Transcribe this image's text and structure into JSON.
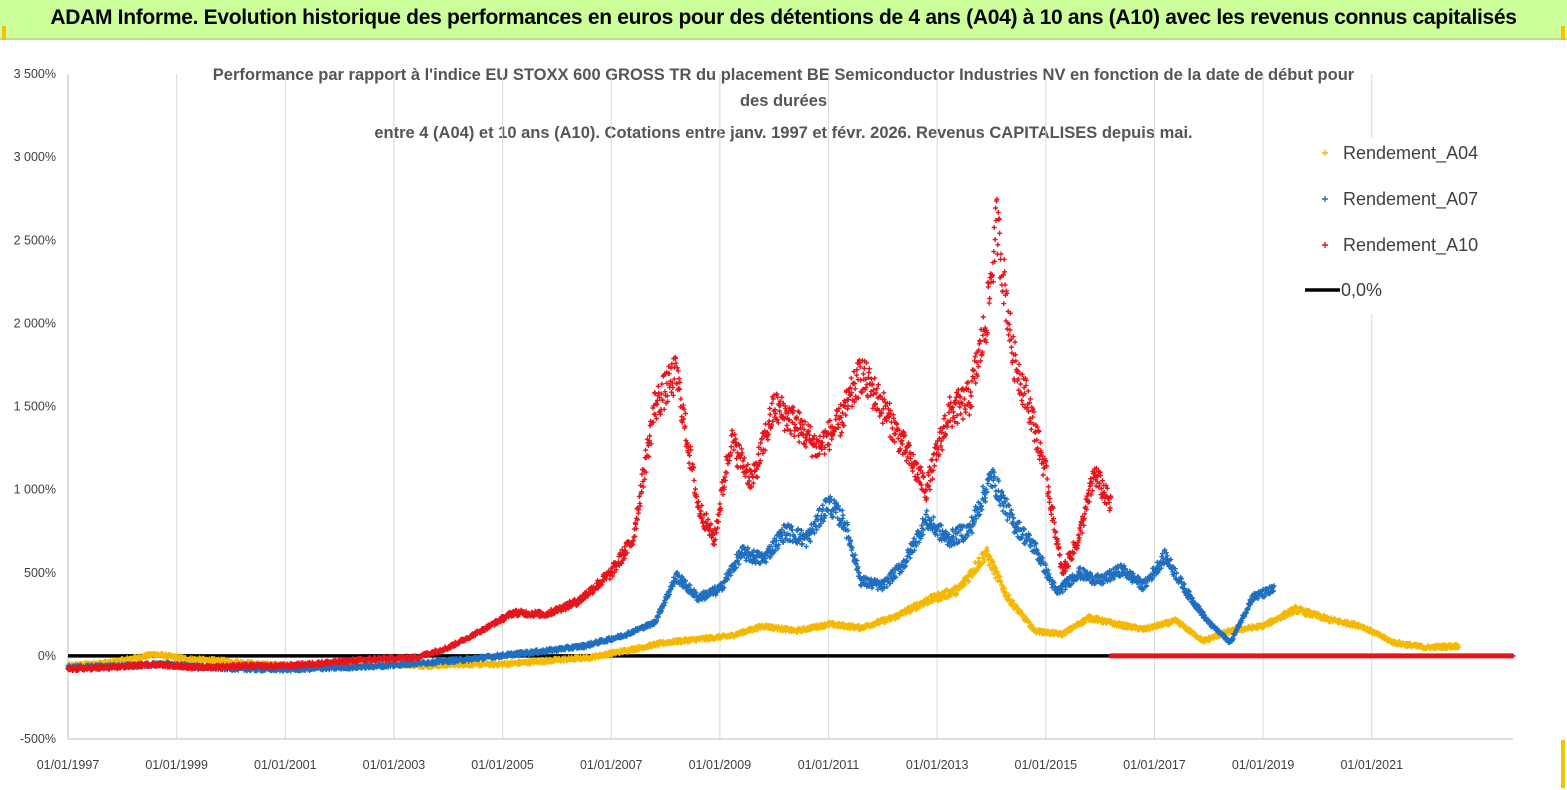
{
  "banner": {
    "title": "ADAM Informe. Evolution historique des performances en euros pour des détentions de 4 ans (A04) à 10 ans (A10) avec les revenus connus capitalisés"
  },
  "colors": {
    "a04": "#f5b800",
    "a07": "#1f6fc0",
    "a10": "#e8141c",
    "zero": "#000000",
    "banner_bg": "#ccff99"
  },
  "chart_data": {
    "type": "scatter",
    "title_lines": [
      "Performance par rapport à l'indice EU STOXX 600 GROSS TR  du placement BE Semiconductor Industries NV en fonction de la date de début pour",
      "des durées",
      "entre 4 (A04) et 10 ans (A10). Cotations entre janv. 1997 et févr. 2026. Revenus CAPITALISES depuis mai."
    ],
    "ylim": [
      -500,
      3500
    ],
    "y_ticks": [
      "-500%",
      "0%",
      "500%",
      "1 000%",
      "1 500%",
      "2 000%",
      "2 500%",
      "3 000%",
      "3 500%"
    ],
    "y_tick_values": [
      -500,
      0,
      500,
      1000,
      1500,
      2000,
      2500,
      3000,
      3500
    ],
    "x_range_years": [
      1997.0,
      2023.6
    ],
    "x_ticks": [
      "01/01/1997",
      "01/01/1999",
      "01/01/2001",
      "01/01/2003",
      "01/01/2005",
      "01/01/2007",
      "01/01/2009",
      "01/01/2011",
      "01/01/2013",
      "01/01/2015",
      "01/01/2017",
      "01/01/2019",
      "01/01/2021"
    ],
    "x_tick_years": [
      1997,
      1999,
      2001,
      2003,
      2005,
      2007,
      2009,
      2011,
      2013,
      2015,
      2017,
      2019,
      2021
    ],
    "legend": [
      "Rendement_A04",
      "Rendement_A07",
      "Rendement_A10",
      "0,0%"
    ],
    "series": [
      {
        "name": "Rendement_A04",
        "color": "#f5b800",
        "points": [
          [
            1997.0,
            -60
          ],
          [
            1997.8,
            -40
          ],
          [
            1998.6,
            10
          ],
          [
            1999.2,
            -20
          ],
          [
            1999.8,
            -30
          ],
          [
            2000.5,
            -50
          ],
          [
            2001.2,
            -60
          ],
          [
            2002.0,
            -50
          ],
          [
            2002.8,
            -40
          ],
          [
            2003.6,
            -60
          ],
          [
            2004.2,
            -50
          ],
          [
            2005.0,
            -50
          ],
          [
            2005.8,
            -30
          ],
          [
            2006.6,
            -10
          ],
          [
            2007.4,
            40
          ],
          [
            2008.0,
            80
          ],
          [
            2008.6,
            100
          ],
          [
            2009.2,
            120
          ],
          [
            2009.8,
            180
          ],
          [
            2010.4,
            150
          ],
          [
            2011.0,
            190
          ],
          [
            2011.6,
            170
          ],
          [
            2012.2,
            230
          ],
          [
            2012.8,
            330
          ],
          [
            2013.4,
            400
          ],
          [
            2013.9,
            620
          ],
          [
            2014.3,
            350
          ],
          [
            2014.8,
            150
          ],
          [
            2015.3,
            130
          ],
          [
            2015.8,
            230
          ],
          [
            2016.3,
            190
          ],
          [
            2016.8,
            160
          ],
          [
            2017.4,
            210
          ],
          [
            2017.9,
            90
          ],
          [
            2018.4,
            150
          ],
          [
            2019.0,
            180
          ],
          [
            2019.6,
            280
          ],
          [
            2020.2,
            220
          ],
          [
            2020.8,
            180
          ],
          [
            2021.4,
            80
          ],
          [
            2022.0,
            50
          ],
          [
            2022.6,
            60
          ]
        ]
      },
      {
        "name": "Rendement_A07",
        "color": "#1f6fc0",
        "points": [
          [
            1997.0,
            -70
          ],
          [
            1998.0,
            -60
          ],
          [
            1998.8,
            -50
          ],
          [
            1999.6,
            -70
          ],
          [
            2000.4,
            -80
          ],
          [
            2001.2,
            -80
          ],
          [
            2002.0,
            -70
          ],
          [
            2002.8,
            -60
          ],
          [
            2003.6,
            -40
          ],
          [
            2004.4,
            -20
          ],
          [
            2005.2,
            10
          ],
          [
            2005.8,
            30
          ],
          [
            2006.5,
            60
          ],
          [
            2007.2,
            120
          ],
          [
            2007.8,
            200
          ],
          [
            2008.2,
            480
          ],
          [
            2008.6,
            350
          ],
          [
            2009.0,
            400
          ],
          [
            2009.4,
            620
          ],
          [
            2009.8,
            580
          ],
          [
            2010.2,
            750
          ],
          [
            2010.6,
            700
          ],
          [
            2011.0,
            920
          ],
          [
            2011.3,
            800
          ],
          [
            2011.6,
            450
          ],
          [
            2012.0,
            420
          ],
          [
            2012.4,
            560
          ],
          [
            2012.8,
            820
          ],
          [
            2013.2,
            700
          ],
          [
            2013.6,
            760
          ],
          [
            2014.0,
            1080
          ],
          [
            2014.4,
            800
          ],
          [
            2014.8,
            650
          ],
          [
            2015.2,
            380
          ],
          [
            2015.6,
            500
          ],
          [
            2016.0,
            450
          ],
          [
            2016.4,
            520
          ],
          [
            2016.8,
            420
          ],
          [
            2017.2,
            600
          ],
          [
            2017.6,
            380
          ],
          [
            2018.0,
            200
          ],
          [
            2018.4,
            80
          ],
          [
            2018.8,
            350
          ],
          [
            2019.2,
            400
          ]
        ]
      },
      {
        "name": "Rendement_A10",
        "color": "#e8141c",
        "points": [
          [
            1997.0,
            -80
          ],
          [
            1997.8,
            -70
          ],
          [
            1998.6,
            -50
          ],
          [
            1999.4,
            -70
          ],
          [
            2000.2,
            -60
          ],
          [
            2001.0,
            -60
          ],
          [
            2001.8,
            -40
          ],
          [
            2002.6,
            -20
          ],
          [
            2003.4,
            -10
          ],
          [
            2004.0,
            50
          ],
          [
            2004.6,
            150
          ],
          [
            2005.2,
            260
          ],
          [
            2005.8,
            250
          ],
          [
            2006.4,
            330
          ],
          [
            2007.0,
            500
          ],
          [
            2007.4,
            700
          ],
          [
            2007.8,
            1500
          ],
          [
            2008.2,
            1700
          ],
          [
            2008.6,
            900
          ],
          [
            2008.9,
            700
          ],
          [
            2009.2,
            1300
          ],
          [
            2009.6,
            1050
          ],
          [
            2010.0,
            1500
          ],
          [
            2010.4,
            1400
          ],
          [
            2010.8,
            1250
          ],
          [
            2011.2,
            1400
          ],
          [
            2011.6,
            1700
          ],
          [
            2012.0,
            1500
          ],
          [
            2012.4,
            1250
          ],
          [
            2012.8,
            1000
          ],
          [
            2013.2,
            1450
          ],
          [
            2013.6,
            1550
          ],
          [
            2013.9,
            2000
          ],
          [
            2014.1,
            2600
          ],
          [
            2014.4,
            1800
          ],
          [
            2014.7,
            1500
          ],
          [
            2015.0,
            1100
          ],
          [
            2015.3,
            500
          ],
          [
            2015.6,
            700
          ],
          [
            2015.9,
            1100
          ],
          [
            2016.2,
            900
          ]
        ]
      },
      {
        "name": "0,0%",
        "color": "#000000",
        "line": [
          [
            1997.0,
            0
          ],
          [
            2023.6,
            0
          ]
        ]
      }
    ]
  }
}
